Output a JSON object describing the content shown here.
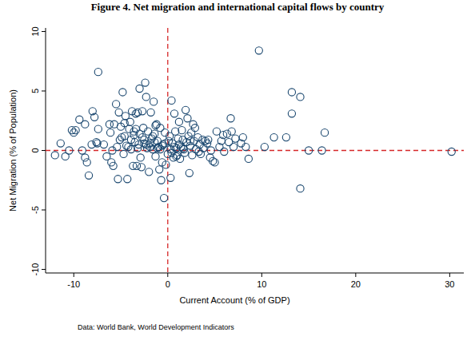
{
  "chart_data": {
    "type": "scatter",
    "title": "Figure 4. Net migration and international capital flows by country",
    "x_label": "Current Account (% of GDP)",
    "y_label": "Net Migration (% of Population)",
    "note": "Data: World Bank, World Development Indicators",
    "color": "#1a476f",
    "marker": "circle",
    "grid": false,
    "xlim": [
      -13,
      31.5
    ],
    "ylim": [
      -10.3,
      10.3
    ],
    "xticks": [
      -10,
      0,
      10,
      20,
      30
    ],
    "yticks": [
      -10,
      -5,
      0,
      5,
      10
    ],
    "reference_lines": {
      "x": 0,
      "y": 0,
      "color": "#d62728",
      "line_style": "dashed"
    },
    "x": [
      -12,
      -11.4,
      -10.9,
      -10.5,
      -10.2,
      -10,
      -9.8,
      -9.4,
      -9.1,
      -8.8,
      -8.8,
      -8.6,
      -8.4,
      -8.1,
      -8,
      -7.8,
      -7.6,
      -7.5,
      -7.4,
      -7.4,
      -6.8,
      -6.5,
      -6.2,
      -6,
      -5.9,
      -5.8,
      -5.7,
      -5.5,
      -5.4,
      -5.3,
      -5.2,
      -5,
      -4.9,
      -4.8,
      -4.7,
      -4.6,
      -4.5,
      -4.3,
      -4.2,
      -4.1,
      -4,
      -3.9,
      -3.8,
      -3.7,
      -3.6,
      -3.5,
      -3.4,
      -3.3,
      -3.2,
      -3.1,
      -3,
      -3,
      -2.9,
      -2.8,
      -2.7,
      -2.6,
      -2.5,
      -2.4,
      -2.3,
      -2.2,
      -2.1,
      -2,
      -1.9,
      -1.8,
      -1.7,
      -1.6,
      -1.5,
      -1.4,
      -1.3,
      -1.2,
      -1.1,
      -1,
      -0.9,
      -0.8,
      -0.7,
      -0.6,
      -0.5,
      -0.4,
      -0.3,
      -0.2,
      0,
      0.1,
      0.2,
      0.3,
      0.4,
      0.5,
      0.6,
      0.7,
      0.8,
      0.9,
      1,
      1.1,
      1.2,
      1.3,
      1.4,
      1.5,
      1.6,
      1.7,
      1.8,
      1.9,
      2,
      2.1,
      2.2,
      2.3,
      2.4,
      2.5,
      2.6,
      2.7,
      2.8,
      2.9,
      3,
      3.2,
      3.4,
      3.5,
      3.7,
      3.8,
      4,
      4.2,
      4.5,
      4.6,
      4.8,
      5,
      5.2,
      5.5,
      5.7,
      6,
      6.3,
      6.5,
      6.7,
      6.8,
      7,
      7.2,
      9.7,
      7.8,
      8,
      8.3,
      8.6,
      10.3,
      11.3,
      12.6,
      13.2,
      13.2,
      14.1,
      14.1,
      15,
      16.4,
      16.7,
      30.2,
      -4.4,
      -3.9,
      -3.2,
      -2.7,
      -2.3,
      -1.9,
      -1.4,
      -1.1,
      -0.6,
      -0.3,
      0.3,
      0.7,
      1.2,
      1.6,
      -5.1,
      -3.6,
      -2.5,
      -1.6,
      -0.8,
      0.4,
      2.4,
      3.3,
      -6.1,
      -4.6,
      -3.4,
      -1.3,
      0.9,
      4.3,
      5.9
    ],
    "values": [
      -0.4,
      0.6,
      -0.5,
      0,
      1.7,
      1.5,
      1.7,
      2.6,
      0,
      2.2,
      -0.6,
      -1,
      -2.1,
      0.5,
      3.3,
      2.8,
      0.7,
      0.6,
      6.6,
      1.8,
      0.5,
      -0.5,
      2.2,
      -1,
      0,
      -1.3,
      2.2,
      3.9,
      0.3,
      -2.4,
      3.2,
      2,
      1.1,
      4.9,
      -0.3,
      1.2,
      2.9,
      -2.4,
      0.3,
      1.8,
      2.4,
      0.1,
      3.3,
      -1.3,
      1.6,
      0.7,
      3.1,
      -1.3,
      3.2,
      0.5,
      1.4,
      5.2,
      -0.6,
      -1.4,
      3.3,
      1.9,
      0.9,
      5.7,
      4.5,
      0.2,
      1.6,
      -1.8,
      0.6,
      3.2,
      1,
      0.1,
      4.1,
      1.4,
      -0.5,
      2.2,
      0.8,
      0.3,
      -1.6,
      1.9,
      -2.5,
      -1,
      0.5,
      -4,
      1.5,
      -1.2,
      -0.3,
      0.8,
      1.2,
      -2.3,
      4.2,
      0.6,
      -0.6,
      3.1,
      1.6,
      0.2,
      -0.4,
      1,
      2.4,
      -0.7,
      0.3,
      1.7,
      0.9,
      0.1,
      -0.2,
      3.4,
      0.7,
      2.7,
      1.2,
      -1.9,
      0.4,
      1.5,
      -0.4,
      2.2,
      0.8,
      1.9,
      0.1,
      1.1,
      0.5,
      -0.3,
      0.9,
      0.2,
      0.8,
      0.6,
      -0.6,
      0,
      -0.9,
      -1,
      1.6,
      0.3,
      0.8,
      -0.1,
      1.4,
      0.7,
      2.7,
      1.6,
      0.3,
      1,
      8.4,
      0.6,
      1.1,
      0.3,
      -0.7,
      0.3,
      1.1,
      1.1,
      3.1,
      4.9,
      4.5,
      -3.2,
      0,
      0,
      1.5,
      -0.1,
      0.4,
      0.9,
      0.2,
      1.1,
      0.5,
      0.3,
      0.7,
      0.2,
      0.4,
      0.6,
      0.1,
      0.3,
      0.5,
      0.2,
      0.9,
      1.3,
      0.6,
      1.2,
      0.1,
      -0.2,
      0.8,
      -0.1,
      1.5,
      2.3,
      1.8,
      2.1,
      -0.5,
      0.9,
      1.3
    ]
  }
}
